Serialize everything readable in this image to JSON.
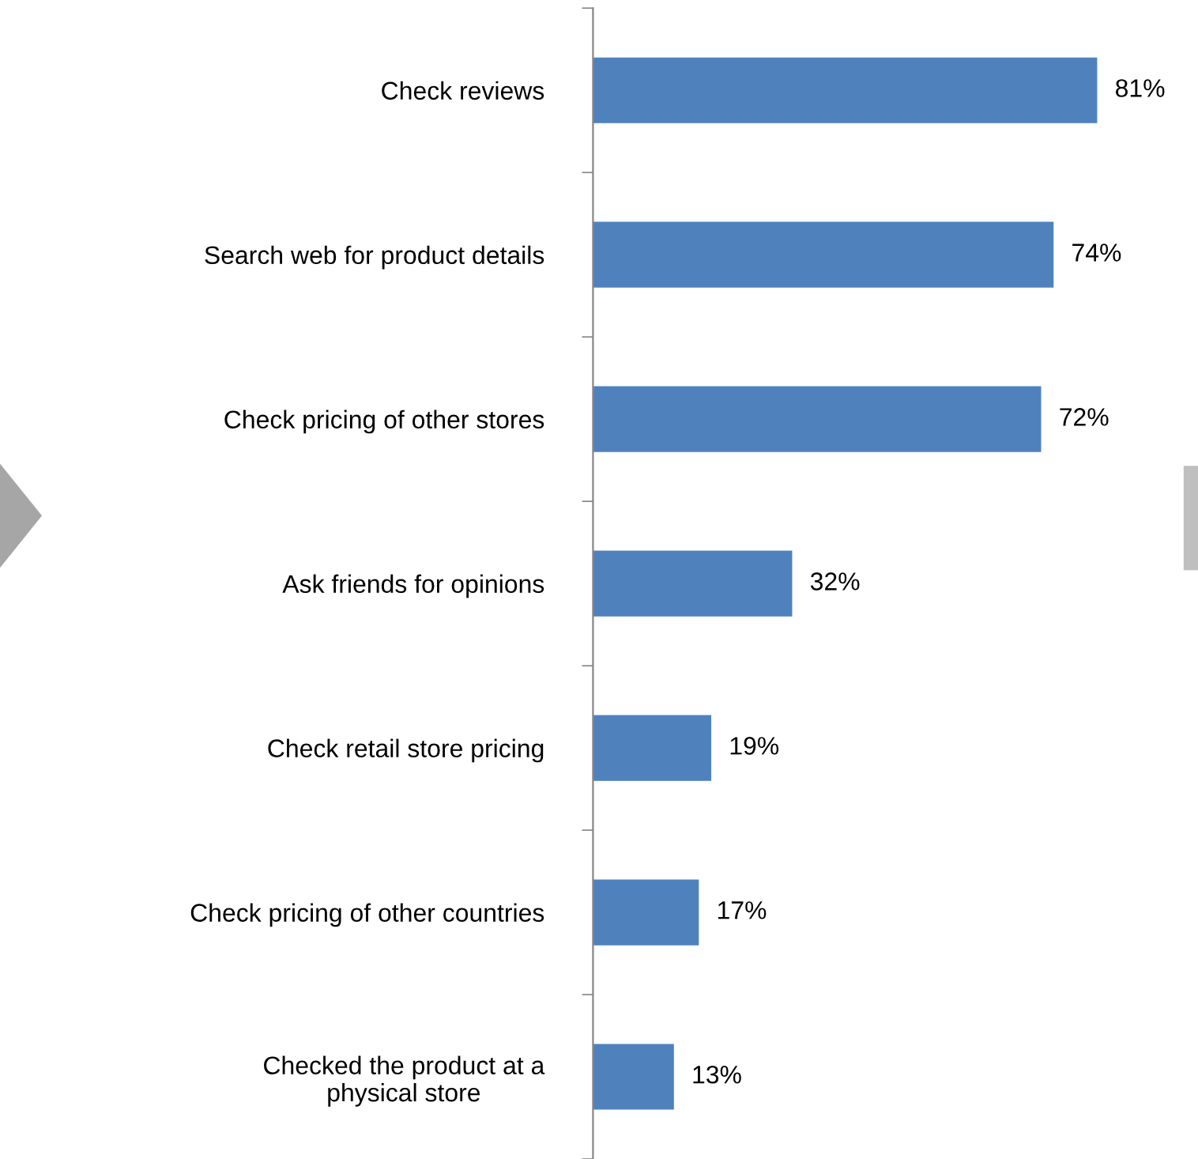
{
  "chart_data": {
    "type": "bar",
    "orientation": "horizontal",
    "categories": [
      "Check reviews",
      "Search web for product details",
      "Check pricing of other stores",
      "Ask friends for opinions",
      "Check retail store pricing",
      "Check pricing of other countries",
      "Checked the product at a\nphysical store"
    ],
    "values": [
      81,
      74,
      72,
      32,
      19,
      17,
      13
    ],
    "value_labels": [
      "81%",
      "74%",
      "72%",
      "32%",
      "19%",
      "17%",
      "13%"
    ],
    "color": "#4f81bd",
    "grid": false,
    "legend": false,
    "tick_labels": "y"
  }
}
